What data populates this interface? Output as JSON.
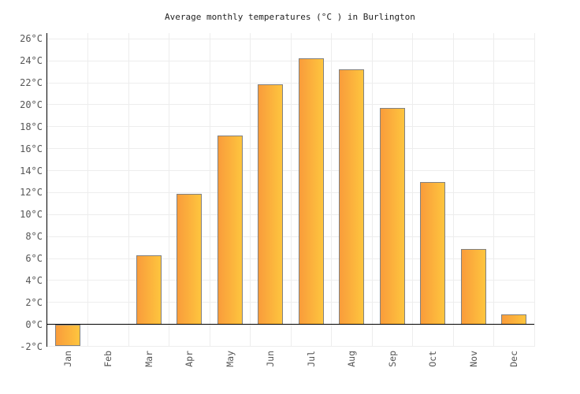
{
  "chart_data": {
    "type": "bar",
    "title": "Average monthly temperatures (°C ) in Burlington",
    "categories": [
      "Jan",
      "Feb",
      "Mar",
      "Apr",
      "May",
      "Jun",
      "Jul",
      "Aug",
      "Sep",
      "Oct",
      "Nov",
      "Dec"
    ],
    "values": [
      -2,
      0,
      6.3,
      11.9,
      17.2,
      21.9,
      24.2,
      23.2,
      19.7,
      13,
      6.9,
      0.9
    ],
    "xlabel": "",
    "ylabel": "",
    "ylim": [
      -2,
      26
    ],
    "ytick_step": 2,
    "ytick_suffix": "°C",
    "grid": true,
    "legend": "none",
    "colors": {
      "bar_gradient_left": "#F99C3B",
      "bar_gradient_right": "#FEC53E",
      "bar_border": "#818181",
      "grid_line": "#EDEDED",
      "zero_line": "#000000",
      "axis_line": "#000000",
      "tick_label": "#565656",
      "title_text": "#222222",
      "background": "#FFFFFF"
    }
  }
}
